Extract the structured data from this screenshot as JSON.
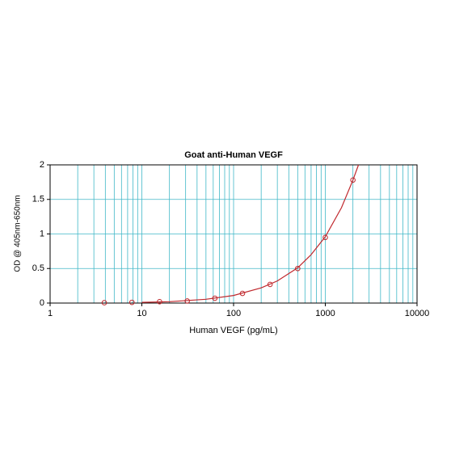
{
  "chart_data": {
    "type": "scatter",
    "title": "Goat anti-Human VEGF",
    "x_label": "Human VEGF (pg/mL)",
    "y_label": "OD @ 405nm-650nm",
    "xscale": "log",
    "xlim": [
      1,
      10000
    ],
    "xticks": [
      1,
      10,
      100,
      1000,
      10000
    ],
    "ylim": [
      0,
      2
    ],
    "yticks": [
      0,
      0.5,
      1,
      1.5,
      2
    ],
    "grid": true,
    "minor_grid": true,
    "grid_color": "#40b8c8",
    "series": [
      {
        "type": "scatter",
        "color": "#c0282d",
        "x": [
          3.9,
          7.8,
          15.6,
          31.25,
          62.5,
          125,
          250,
          500,
          1000,
          2000
        ],
        "values": [
          0.005,
          0.01,
          0.02,
          0.03,
          0.07,
          0.14,
          0.27,
          0.5,
          0.95,
          1.78
        ]
      },
      {
        "type": "line",
        "color": "#c0282d",
        "x": [
          10,
          20,
          50,
          100,
          200,
          300,
          500,
          700,
          1000,
          1500,
          2000,
          2300
        ],
        "values": [
          0.01,
          0.02,
          0.055,
          0.11,
          0.22,
          0.32,
          0.51,
          0.7,
          0.96,
          1.38,
          1.78,
          2.0
        ]
      }
    ]
  }
}
